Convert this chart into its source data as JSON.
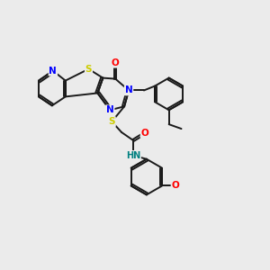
{
  "background_color": "#ebebeb",
  "bond_color": "#1a1a1a",
  "atom_colors": {
    "N": "#0000ff",
    "S": "#cccc00",
    "O": "#ff0000",
    "H": "#008080",
    "C": "#1a1a1a"
  },
  "figsize": [
    3.0,
    3.0
  ],
  "dpi": 100,
  "lw": 1.4,
  "fontsize": 7.5
}
